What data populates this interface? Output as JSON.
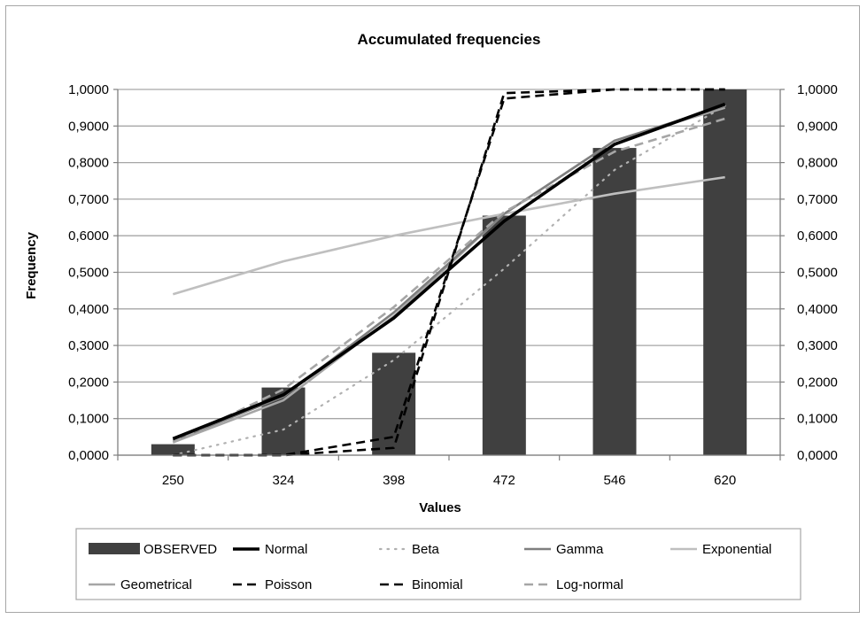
{
  "chart_data": {
    "type": "bar",
    "title": "Accumulated frequencies",
    "xlabel": "Values",
    "ylabel": "Frequency",
    "categories": [
      "250",
      "324",
      "398",
      "472",
      "546",
      "620"
    ],
    "ylim": [
      0,
      1
    ],
    "y_ticks": [
      "0,0000",
      "0,1000",
      "0,2000",
      "0,3000",
      "0,4000",
      "0,5000",
      "0,6000",
      "0,7000",
      "0,8000",
      "0,9000",
      "1,0000"
    ],
    "grid": true,
    "legend_position": "bottom",
    "bars": {
      "name": "OBSERVED",
      "values": [
        0.03,
        0.185,
        0.28,
        0.655,
        0.84,
        1.0
      ],
      "color": "#404040"
    },
    "series": [
      {
        "name": "Normal",
        "values": [
          0.045,
          0.165,
          0.375,
          0.64,
          0.85,
          0.96
        ],
        "color": "#000000",
        "style": "solid-thick"
      },
      {
        "name": "Beta",
        "values": [
          0.0,
          0.07,
          0.26,
          0.51,
          0.78,
          0.955
        ],
        "color": "#b0b0b0",
        "style": "dotted"
      },
      {
        "name": "Gamma",
        "values": [
          0.04,
          0.16,
          0.39,
          0.66,
          0.86,
          0.955
        ],
        "color": "#7f7f7f",
        "style": "solid"
      },
      {
        "name": "Exponential",
        "values": [
          0.44,
          0.53,
          0.6,
          0.66,
          0.715,
          0.76
        ],
        "color": "#bfbfbf",
        "style": "solid"
      },
      {
        "name": "Geometrical",
        "values": [
          0.035,
          0.15,
          0.38,
          0.66,
          0.86,
          0.95
        ],
        "color": "#a6a6a6",
        "style": "solid"
      },
      {
        "name": "Poisson",
        "values": [
          0.0,
          0.0,
          0.05,
          0.975,
          1.0,
          1.0
        ],
        "color": "#000000",
        "style": "dashed"
      },
      {
        "name": "Binomial",
        "values": [
          0.0,
          0.0,
          0.02,
          0.99,
          1.0,
          1.0
        ],
        "color": "#000000",
        "style": "dashed"
      },
      {
        "name": "Log-normal",
        "values": [
          0.035,
          0.18,
          0.405,
          0.665,
          0.83,
          0.92
        ],
        "color": "#a6a6a6",
        "style": "dashed"
      }
    ]
  }
}
